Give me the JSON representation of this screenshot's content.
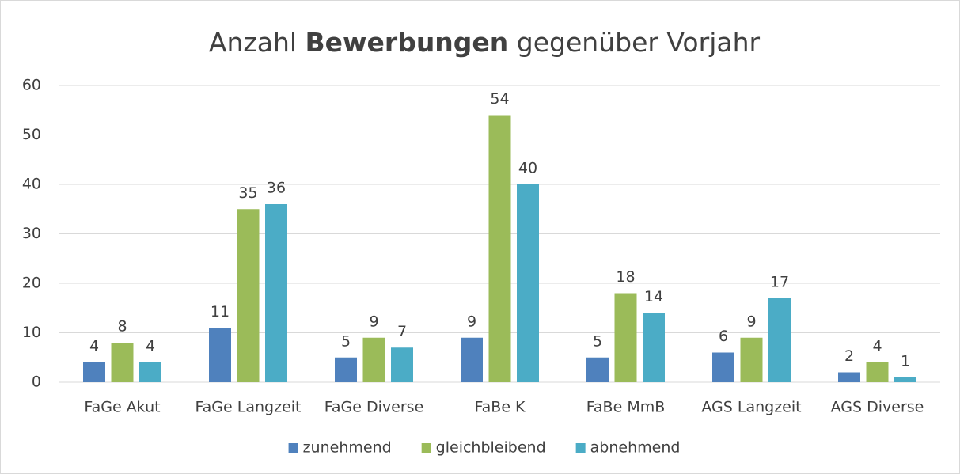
{
  "chart_data": {
    "type": "bar",
    "title": [
      {
        "text": "Anzahl "
      },
      {
        "text": "Bewerbungen",
        "bold": true
      },
      {
        "text": " gegenüber Vorjahr"
      }
    ],
    "categories": [
      "FaGe Akut",
      "FaGe Langzeit",
      "FaGe Diverse",
      "FaBe K",
      "FaBe MmB",
      "AGS Langzeit",
      "AGS Diverse"
    ],
    "series": [
      {
        "name": "zunehmend",
        "color": "#4f81bd",
        "values": [
          4,
          11,
          5,
          9,
          5,
          6,
          2
        ]
      },
      {
        "name": "gleichbleibend",
        "color": "#9bbb59",
        "values": [
          8,
          35,
          9,
          54,
          18,
          9,
          4
        ]
      },
      {
        "name": "abnehmend",
        "color": "#4bacc6",
        "values": [
          4,
          36,
          7,
          40,
          14,
          17,
          1
        ]
      }
    ],
    "ylim": [
      0,
      60
    ],
    "yticks": [
      0,
      10,
      20,
      30,
      40,
      50,
      60
    ],
    "grid": true,
    "legend": "bottom"
  }
}
